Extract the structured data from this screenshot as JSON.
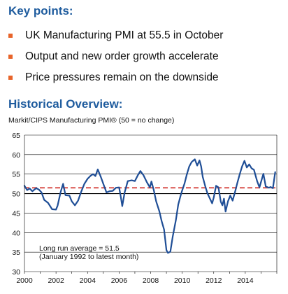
{
  "key_points": {
    "heading": "Key points:",
    "items": [
      "UK Manufacturing PMI at 55.5 in October",
      "Output and new order growth accelerate",
      "Price pressures remain on the downside"
    ]
  },
  "colors": {
    "heading": "#1f5c9e",
    "bullet": "#e8642a",
    "line": "#1f4e96",
    "average": "#d9534f"
  },
  "chart_data": {
    "type": "line",
    "section_heading": "Historical Overview:",
    "title": "Markit/CIPS Manufacturing PMI® (50 = no change)",
    "xlim": [
      2000,
      2016
    ],
    "ylim": [
      30,
      65
    ],
    "x_ticks": [
      2000,
      2002,
      2004,
      2006,
      2008,
      2010,
      2012,
      2014
    ],
    "x_tick_labels": [
      "2000",
      "2002",
      "2004",
      "2006",
      "2008",
      "2010",
      "2012",
      "2014"
    ],
    "y_ticks": [
      30,
      35,
      40,
      45,
      50,
      55,
      60,
      65
    ],
    "y_tick_labels": [
      "30",
      "35",
      "40",
      "45",
      "50",
      "55",
      "60",
      "65"
    ],
    "grid": "horizontal",
    "reference_lines": [
      {
        "name": "Long run average",
        "value": 51.5,
        "style": "dashed"
      }
    ],
    "annotation_lines": [
      "Long run average = 51.5",
      "(January 1992 to latest month)"
    ],
    "series": [
      {
        "values": [
          [
            2000.0,
            52.0
          ],
          [
            2000.17,
            50.9
          ],
          [
            2000.33,
            51.3
          ],
          [
            2000.5,
            50.6
          ],
          [
            2000.75,
            51.4
          ],
          [
            2000.92,
            51.0
          ],
          [
            2001.08,
            50.3
          ],
          [
            2001.25,
            48.4
          ],
          [
            2001.5,
            47.6
          ],
          [
            2001.75,
            46.0
          ],
          [
            2002.0,
            45.9
          ],
          [
            2002.1,
            46.9
          ],
          [
            2002.3,
            50.5
          ],
          [
            2002.45,
            52.5
          ],
          [
            2002.6,
            49.6
          ],
          [
            2002.85,
            49.5
          ],
          [
            2003.0,
            48.0
          ],
          [
            2003.2,
            47.0
          ],
          [
            2003.4,
            48.2
          ],
          [
            2003.6,
            50.5
          ],
          [
            2003.8,
            52.5
          ],
          [
            2004.0,
            53.8
          ],
          [
            2004.2,
            54.6
          ],
          [
            2004.35,
            55.0
          ],
          [
            2004.5,
            54.5
          ],
          [
            2004.65,
            56.2
          ],
          [
            2004.85,
            54.2
          ],
          [
            2005.0,
            52.5
          ],
          [
            2005.2,
            50.3
          ],
          [
            2005.4,
            50.6
          ],
          [
            2005.6,
            50.7
          ],
          [
            2005.8,
            51.5
          ],
          [
            2006.0,
            51.6
          ],
          [
            2006.1,
            49.4
          ],
          [
            2006.2,
            46.8
          ],
          [
            2006.35,
            50.3
          ],
          [
            2006.55,
            53.2
          ],
          [
            2006.8,
            53.4
          ],
          [
            2007.0,
            53.2
          ],
          [
            2007.2,
            54.8
          ],
          [
            2007.35,
            55.8
          ],
          [
            2007.55,
            54.7
          ],
          [
            2007.75,
            53.0
          ],
          [
            2007.95,
            51.6
          ],
          [
            2008.05,
            53.1
          ],
          [
            2008.2,
            50.9
          ],
          [
            2008.35,
            48.0
          ],
          [
            2008.55,
            45.5
          ],
          [
            2008.7,
            42.9
          ],
          [
            2008.85,
            40.8
          ],
          [
            2009.0,
            35.5
          ],
          [
            2009.1,
            34.8
          ],
          [
            2009.25,
            35.1
          ],
          [
            2009.4,
            39.0
          ],
          [
            2009.6,
            43.2
          ],
          [
            2009.75,
            47.2
          ],
          [
            2009.9,
            49.5
          ],
          [
            2010.0,
            50.8
          ],
          [
            2010.15,
            52.6
          ],
          [
            2010.3,
            55.0
          ],
          [
            2010.45,
            57.0
          ],
          [
            2010.6,
            58.1
          ],
          [
            2010.8,
            58.8
          ],
          [
            2010.95,
            57.2
          ],
          [
            2011.1,
            58.5
          ],
          [
            2011.2,
            57.0
          ],
          [
            2011.3,
            54.3
          ],
          [
            2011.45,
            52.1
          ],
          [
            2011.6,
            50.1
          ],
          [
            2011.75,
            48.8
          ],
          [
            2011.9,
            47.5
          ],
          [
            2012.0,
            49.0
          ],
          [
            2012.15,
            52.0
          ],
          [
            2012.3,
            51.6
          ],
          [
            2012.45,
            47.9
          ],
          [
            2012.55,
            47.0
          ],
          [
            2012.65,
            48.7
          ],
          [
            2012.75,
            45.4
          ],
          [
            2012.9,
            48.0
          ],
          [
            2013.05,
            49.5
          ],
          [
            2013.2,
            48.2
          ],
          [
            2013.35,
            50.4
          ],
          [
            2013.5,
            52.8
          ],
          [
            2013.65,
            55.0
          ],
          [
            2013.8,
            57.0
          ],
          [
            2013.95,
            58.4
          ],
          [
            2014.1,
            56.7
          ],
          [
            2014.25,
            57.5
          ],
          [
            2014.4,
            56.5
          ],
          [
            2014.55,
            56.1
          ],
          [
            2014.75,
            53.2
          ],
          [
            2014.9,
            51.6
          ],
          [
            2015.0,
            53.0
          ],
          [
            2015.15,
            55.1
          ],
          [
            2015.3,
            51.8
          ],
          [
            2015.5,
            51.5
          ],
          [
            2015.6,
            51.7
          ],
          [
            2015.75,
            51.4
          ],
          [
            2015.9,
            55.5
          ]
        ]
      }
    ]
  }
}
